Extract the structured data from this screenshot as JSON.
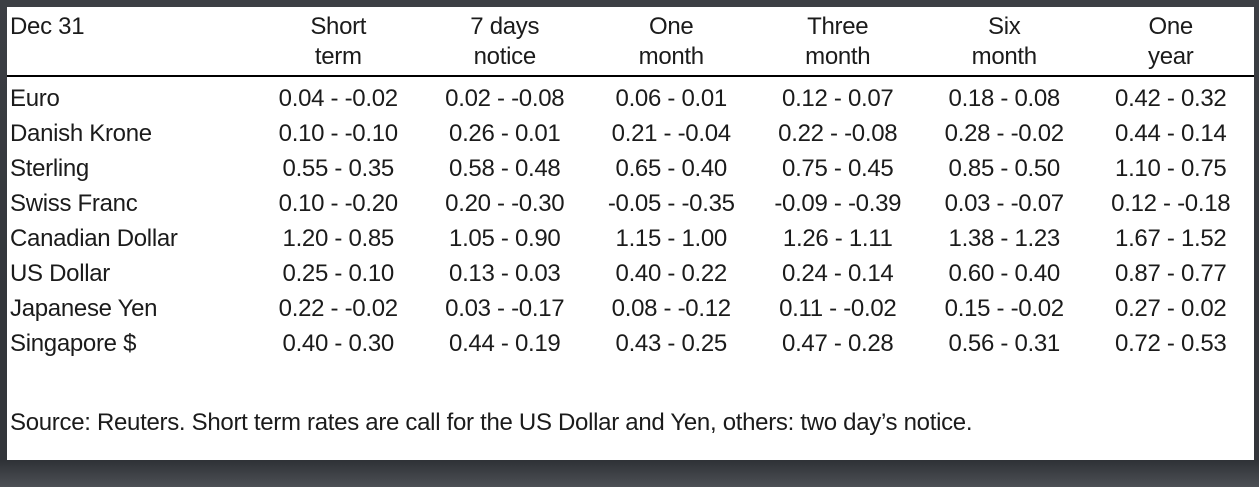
{
  "chart_data": {
    "type": "table",
    "title": "Dec 31",
    "columns": [
      "Short\nterm",
      "7 days\nnotice",
      "One\nmonth",
      "Three\nmonth",
      "Six\nmonth",
      "One\nyear"
    ],
    "rows": [
      {
        "currency": "Euro",
        "values": [
          "0.04 - -0.02",
          "0.02 - -0.08",
          "0.06 - 0.01",
          "0.12 - 0.07",
          "0.18 - 0.08",
          "0.42 - 0.32"
        ]
      },
      {
        "currency": "Danish Krone",
        "values": [
          "0.10 - -0.10",
          "0.26 - 0.01",
          "0.21 - -0.04",
          "0.22 - -0.08",
          "0.28 - -0.02",
          "0.44 - 0.14"
        ]
      },
      {
        "currency": "Sterling",
        "values": [
          "0.55 - 0.35",
          "0.58 - 0.48",
          "0.65 - 0.40",
          "0.75 - 0.45",
          "0.85 - 0.50",
          "1.10 - 0.75"
        ]
      },
      {
        "currency": "Swiss Franc",
        "values": [
          "0.10 - -0.20",
          "0.20 - -0.30",
          "-0.05 - -0.35",
          "-0.09 - -0.39",
          "0.03 - -0.07",
          "0.12 - -0.18"
        ]
      },
      {
        "currency": "Canadian Dollar",
        "values": [
          "1.20 - 0.85",
          "1.05 - 0.90",
          "1.15 - 1.00",
          "1.26 - 1.11",
          "1.38 - 1.23",
          "1.67 - 1.52"
        ]
      },
      {
        "currency": "US Dollar",
        "values": [
          "0.25 - 0.10",
          "0.13 - 0.03",
          "0.40 - 0.22",
          "0.24 - 0.14",
          "0.60 - 0.40",
          "0.87 - 0.77"
        ]
      },
      {
        "currency": "Japanese Yen",
        "values": [
          "0.22 - -0.02",
          "0.03 - -0.17",
          "0.08 - -0.12",
          "0.11 - -0.02",
          "0.15 - -0.02",
          "0.27 - 0.02"
        ]
      },
      {
        "currency": "Singapore $",
        "values": [
          "0.40 - 0.30",
          "0.44 - 0.19",
          "0.43 - 0.25",
          "0.47 - 0.28",
          "0.56 - 0.31",
          "0.72 - 0.53"
        ]
      }
    ]
  },
  "footer": {
    "source_note": "Source: Reuters. Short term rates are call for the US Dollar and Yen, others: two day’s notice."
  }
}
